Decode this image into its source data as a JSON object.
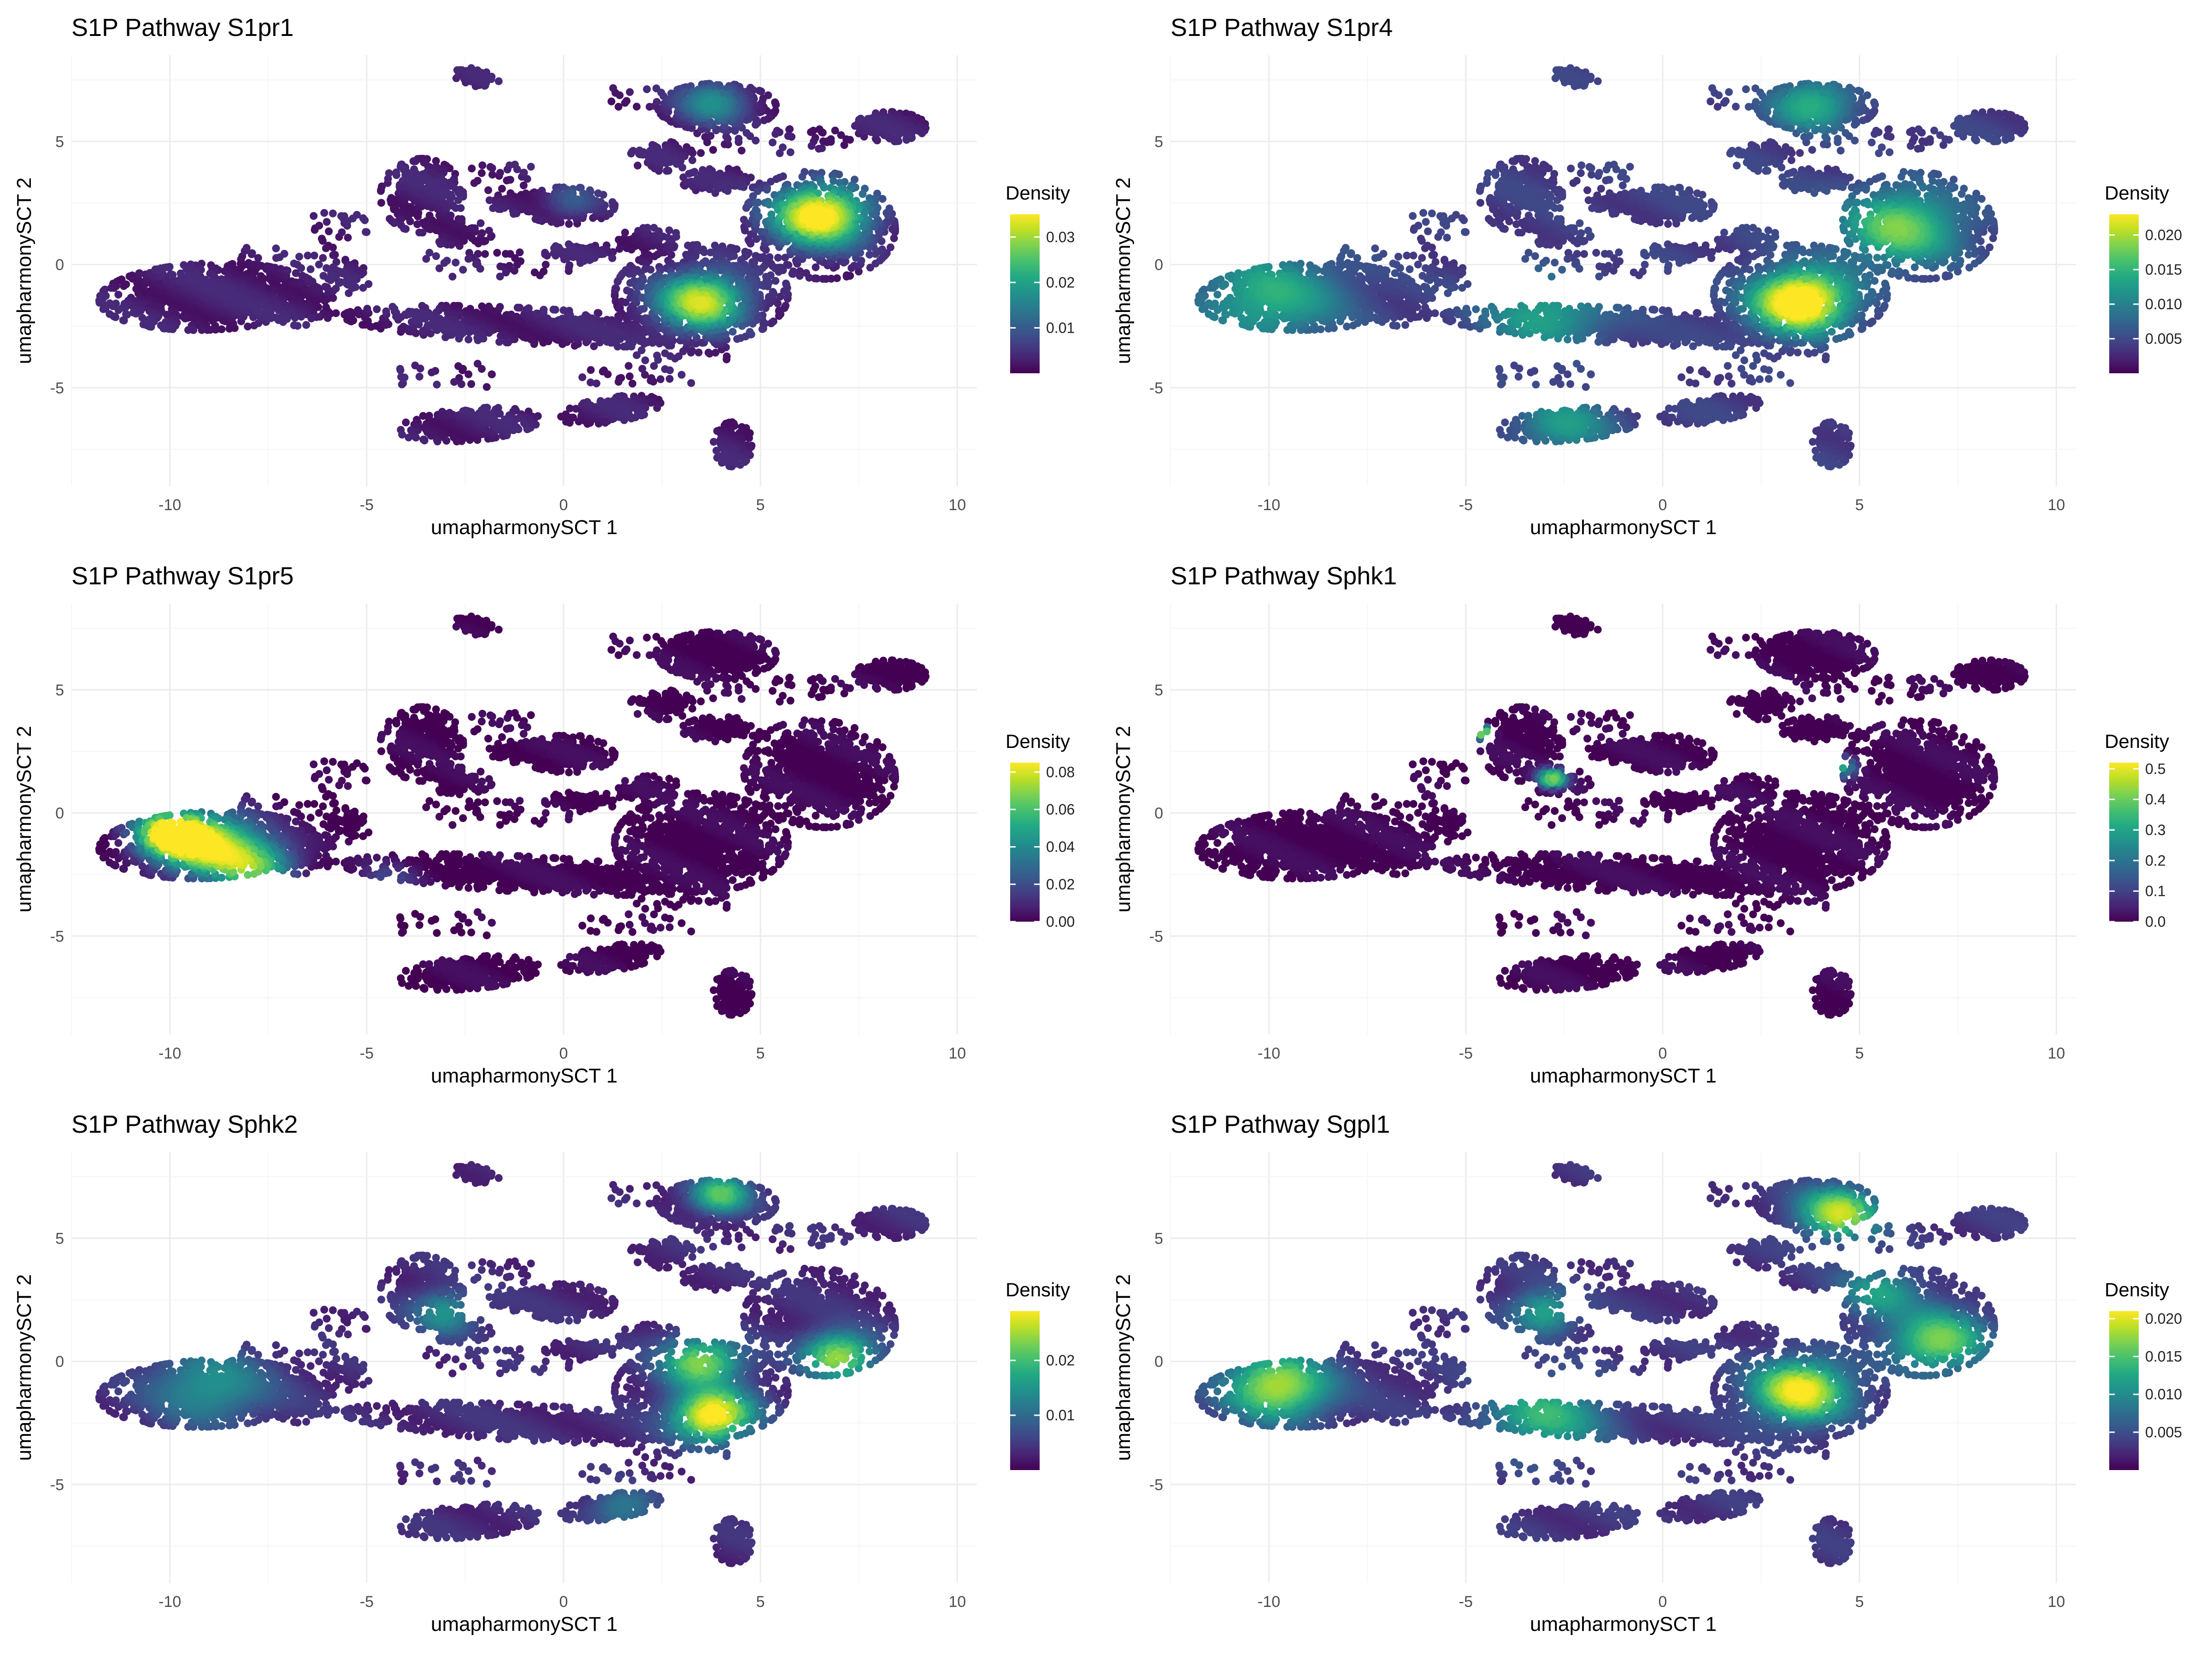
{
  "palette": [
    "#440154",
    "#482475",
    "#414487",
    "#355f8d",
    "#2a788e",
    "#21918c",
    "#22a884",
    "#44bf70",
    "#7ad151",
    "#bddf26",
    "#fde725"
  ],
  "chart_data": [
    {
      "type": "scatter",
      "title": "S1P Pathway S1pr1",
      "xlabel": "umapharmonySCT 1",
      "ylabel": "umapharmonySCT 2",
      "xlim": [
        -12.5,
        10.5
      ],
      "ylim": [
        -9,
        8.5
      ],
      "xticks": [
        -10,
        -5,
        0,
        5,
        10
      ],
      "yticks": [
        -5,
        0,
        5
      ],
      "grid": true,
      "legend": {
        "title": "Density",
        "position": "right",
        "min": 0.0,
        "max": 0.035,
        "ticks": [
          0.01,
          0.02,
          0.03
        ],
        "tick_labels": [
          "0.01",
          "0.02",
          "0.03"
        ]
      },
      "hotspots": [
        [
          6.5,
          2.0,
          1.2,
          1.0
        ],
        [
          3.5,
          -1.5,
          1.1,
          0.85
        ],
        [
          3.8,
          6.6,
          0.8,
          0.4
        ],
        [
          0.2,
          2.6,
          0.6,
          0.2
        ]
      ],
      "baseline": 0.08
    },
    {
      "type": "scatter",
      "title": "S1P Pathway S1pr4",
      "xlabel": "umapharmonySCT 1",
      "ylabel": "umapharmonySCT 2",
      "xlim": [
        -12.5,
        10.5
      ],
      "ylim": [
        -9,
        8.5
      ],
      "xticks": [
        -10,
        -5,
        0,
        5,
        10
      ],
      "yticks": [
        -5,
        0,
        5
      ],
      "grid": true,
      "legend": {
        "title": "Density",
        "position": "right",
        "min": 0.0,
        "max": 0.023,
        "ticks": [
          0.005,
          0.01,
          0.015,
          0.02
        ],
        "tick_labels": [
          "0.005",
          "0.010",
          "0.015",
          "0.020"
        ]
      },
      "hotspots": [
        [
          3.5,
          -1.5,
          1.2,
          1.0
        ],
        [
          6.0,
          1.5,
          1.5,
          0.6
        ],
        [
          -10.0,
          -1.3,
          1.8,
          0.45
        ],
        [
          -3.0,
          -2.0,
          1.5,
          0.4
        ],
        [
          3.8,
          6.5,
          1.0,
          0.45
        ],
        [
          -2.5,
          -6.5,
          1.2,
          0.35
        ]
      ],
      "baseline": 0.18
    },
    {
      "type": "scatter",
      "title": "S1P Pathway S1pr5",
      "xlabel": "umapharmonySCT 1",
      "ylabel": "umapharmonySCT 2",
      "xlim": [
        -12.5,
        10.5
      ],
      "ylim": [
        -9,
        8.5
      ],
      "xticks": [
        -10,
        -5,
        0,
        5,
        10
      ],
      "yticks": [
        -5,
        0,
        5
      ],
      "grid": true,
      "legend": {
        "title": "Density",
        "position": "right",
        "min": 0.0,
        "max": 0.085,
        "ticks": [
          0.0,
          0.02,
          0.04,
          0.06,
          0.08
        ],
        "tick_labels": [
          "0.00",
          "0.02",
          "0.04",
          "0.06",
          "0.08"
        ]
      },
      "hotspots": [
        [
          -10.0,
          -0.8,
          0.9,
          0.9
        ],
        [
          -9.0,
          -1.3,
          1.3,
          0.85
        ],
        [
          -7.8,
          -2.2,
          1.0,
          0.6
        ],
        [
          -4.5,
          -2.8,
          0.7,
          0.2
        ]
      ],
      "baseline": 0.0
    },
    {
      "type": "scatter",
      "title": "S1P Pathway Sphk1",
      "xlabel": "umapharmonySCT 1",
      "ylabel": "umapharmonySCT 2",
      "xlim": [
        -12.5,
        10.5
      ],
      "ylim": [
        -9,
        8.5
      ],
      "xticks": [
        -10,
        -5,
        0,
        5,
        10
      ],
      "yticks": [
        -5,
        0,
        5
      ],
      "grid": true,
      "legend": {
        "title": "Density",
        "position": "right",
        "min": 0.0,
        "max": 0.52,
        "ticks": [
          0.0,
          0.1,
          0.2,
          0.3,
          0.4,
          0.5
        ],
        "tick_labels": [
          "0.0",
          "0.1",
          "0.2",
          "0.3",
          "0.4",
          "0.5"
        ]
      },
      "hotspots": [
        [
          -4.6,
          3.3,
          0.25,
          0.95
        ],
        [
          -2.8,
          1.4,
          0.35,
          0.75
        ],
        [
          4.5,
          1.9,
          0.4,
          0.6
        ]
      ],
      "baseline": 0.0
    },
    {
      "type": "scatter",
      "title": "S1P Pathway Sphk2",
      "xlabel": "umapharmonySCT 1",
      "ylabel": "umapharmonySCT 2",
      "xlim": [
        -12.5,
        10.5
      ],
      "ylim": [
        -9,
        8.5
      ],
      "xticks": [
        -10,
        -5,
        0,
        5,
        10
      ],
      "yticks": [
        -5,
        0,
        5
      ],
      "grid": true,
      "legend": {
        "title": "Density",
        "position": "right",
        "min": 0.0,
        "max": 0.029,
        "ticks": [
          0.01,
          0.02
        ],
        "tick_labels": [
          "0.01",
          "0.02"
        ]
      },
      "hotspots": [
        [
          3.8,
          -2.2,
          1.0,
          0.95
        ],
        [
          3.5,
          0.0,
          1.0,
          0.7
        ],
        [
          7.0,
          0.2,
          0.9,
          0.75
        ],
        [
          4.0,
          6.8,
          0.7,
          0.6
        ],
        [
          -9.0,
          -1.0,
          1.5,
          0.4
        ],
        [
          -3.0,
          2.0,
          0.8,
          0.4
        ],
        [
          1.5,
          -6.0,
          0.8,
          0.3
        ]
      ],
      "baseline": 0.12
    },
    {
      "type": "scatter",
      "title": "S1P Pathway Sgpl1",
      "xlabel": "umapharmonySCT 1",
      "ylabel": "umapharmonySCT 2",
      "xlim": [
        -12.5,
        10.5
      ],
      "ylim": [
        -9,
        8.5
      ],
      "xticks": [
        -10,
        -5,
        0,
        5,
        10
      ],
      "yticks": [
        -5,
        0,
        5
      ],
      "grid": true,
      "legend": {
        "title": "Density",
        "position": "right",
        "min": 0.0,
        "max": 0.021,
        "ticks": [
          0.005,
          0.01,
          0.015,
          0.02
        ],
        "tick_labels": [
          "0.005",
          "0.010",
          "0.015",
          "0.020"
        ]
      },
      "hotspots": [
        [
          3.5,
          -1.2,
          1.2,
          0.85
        ],
        [
          -9.8,
          -1.0,
          1.3,
          0.75
        ],
        [
          4.5,
          6.0,
          1.0,
          0.75
        ],
        [
          7.0,
          0.8,
          1.2,
          0.65
        ],
        [
          -3.0,
          -2.2,
          1.5,
          0.5
        ],
        [
          -3.0,
          2.0,
          0.8,
          0.45
        ],
        [
          5.5,
          2.8,
          1.0,
          0.4
        ]
      ],
      "baseline": 0.15
    }
  ]
}
